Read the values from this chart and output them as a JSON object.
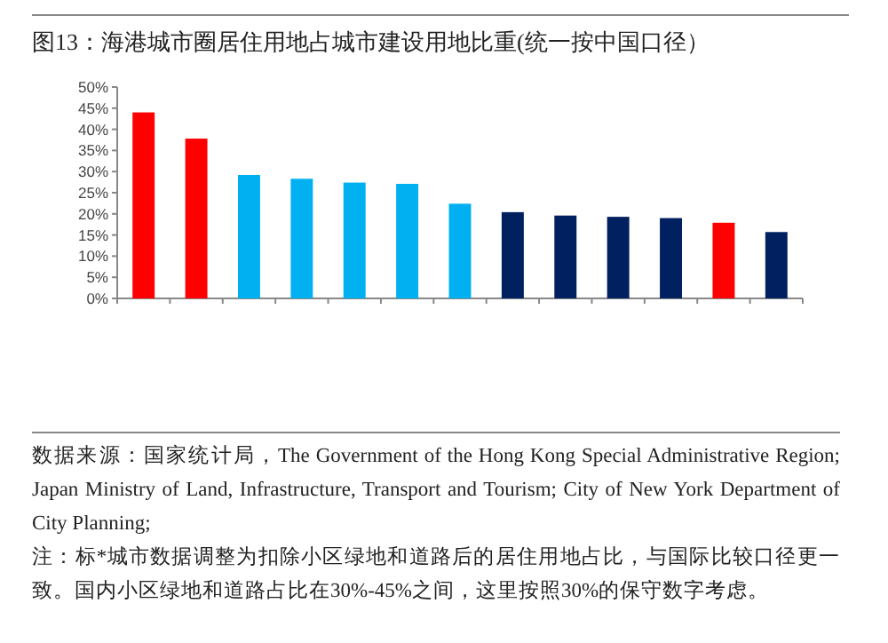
{
  "chart_data": {
    "type": "bar",
    "title": "图13：海港城市圈居住用地占城市建设用地比重(统一按中国口径）",
    "categories": [
      null,
      null,
      null,
      null,
      null,
      null,
      null,
      null,
      null,
      null,
      null,
      null,
      null
    ],
    "values": [
      44,
      37.8,
      29.2,
      28.3,
      27.4,
      27.1,
      22.4,
      20.4,
      19.6,
      19.3,
      19.0,
      17.9,
      15.7
    ],
    "colors": [
      "#ff0000",
      "#ff0000",
      "#00b0f0",
      "#00b0f0",
      "#00b0f0",
      "#00b0f0",
      "#00b0f0",
      "#002060",
      "#002060",
      "#002060",
      "#002060",
      "#ff0000",
      "#002060"
    ],
    "ylim": [
      0,
      50
    ],
    "yticks": [
      {
        "value": 0,
        "label": "0%"
      },
      {
        "value": 5,
        "label": "5%"
      },
      {
        "value": 10,
        "label": "10%"
      },
      {
        "value": 15,
        "label": "15%"
      },
      {
        "value": 20,
        "label": "20%"
      },
      {
        "value": 25,
        "label": "25%"
      },
      {
        "value": 30,
        "label": "30%"
      },
      {
        "value": 35,
        "label": "35%"
      },
      {
        "value": 40,
        "label": "40%"
      },
      {
        "value": 45,
        "label": "45%"
      },
      {
        "value": 50,
        "label": "50%"
      }
    ],
    "grid": false,
    "annotations": [
      "数据来源：国家统计局，The Government of the Hong Kong Special Administrative Region; Japan Ministry of Land, Infrastructure, Transport and Tourism;  City of New York Department of City Planning;",
      "注：标*城市数据调整为扣除小区绿地和道路后的居住用地占比，与国际比较口径更一致。国内小区绿地和道路占比在30%-45%之间，这里按照30%的保守数字考虑。"
    ]
  }
}
